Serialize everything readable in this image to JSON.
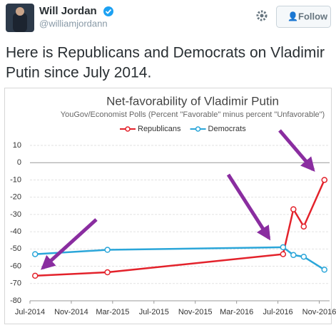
{
  "tweet": {
    "name": "Will Jordan",
    "handle": "@williamjordann",
    "follow": "Follow",
    "text": [
      "Here is Republicans and Democrats on Vladimir",
      "Putin since July 2014."
    ]
  },
  "chart_data": {
    "type": "line",
    "title": "Net-favorability of Vladimir Putin",
    "subtitle": "YouGov/Economist Polls (Percent \"Favorable\" minus percent \"Unfavorable\")",
    "series": [
      {
        "name": "Republicans",
        "color": "#e3222b",
        "x": [
          "2014-07",
          "2015-02",
          "2016-07",
          "2016-08",
          "2016-09",
          "2016-11"
        ],
        "values": [
          -65.5,
          -63.5,
          -53,
          -27,
          -37,
          -10
        ]
      },
      {
        "name": "Democrats",
        "color": "#2ba6d9",
        "x": [
          "2014-07",
          "2015-02",
          "2016-07",
          "2016-08",
          "2016-09",
          "2016-11"
        ],
        "values": [
          -53,
          -50.5,
          -49,
          -53.5,
          -54.5,
          -62
        ]
      }
    ],
    "xlim": [
      "2014-07",
      "2016-12"
    ],
    "xticks": [
      {
        "value": "2014-07",
        "label": "Jul-2014"
      },
      {
        "value": "2014-11",
        "label": "Nov-2014"
      },
      {
        "value": "2015-03",
        "label": "Mar-2015"
      },
      {
        "value": "2015-07",
        "label": "Jul-2015"
      },
      {
        "value": "2015-11",
        "label": "Nov-2015"
      },
      {
        "value": "2016-03",
        "label": "Mar-2016"
      },
      {
        "value": "2016-07",
        "label": "Jul-2016"
      },
      {
        "value": "2016-11",
        "label": "Nov-2016"
      }
    ],
    "ylim": [
      -80,
      10
    ],
    "yticks": [
      10,
      0,
      -10,
      -20,
      -30,
      -40,
      -50,
      -60,
      -70,
      -80
    ],
    "grid": true,
    "legend": "top"
  }
}
